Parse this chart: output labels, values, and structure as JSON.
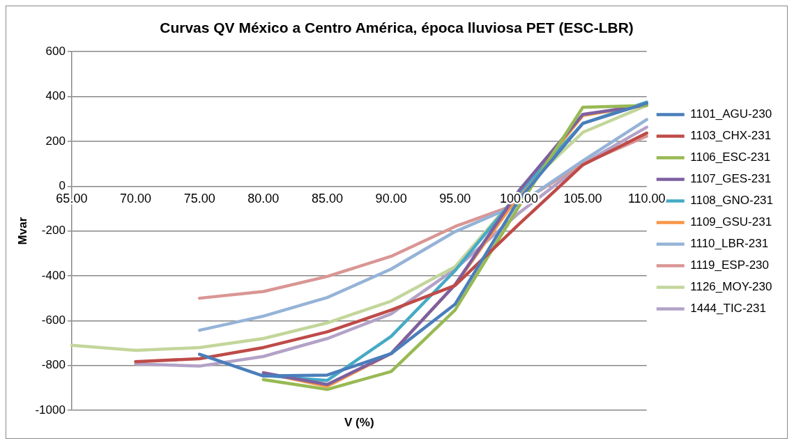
{
  "chart_data": {
    "type": "line",
    "title": "Curvas QV México a Centro América, época lluviosa PET (ESC-LBR)",
    "xlabel": "V (%)",
    "ylabel": "Mvar",
    "categories": [
      "65.00",
      "70.00",
      "75.00",
      "80.00",
      "85.00",
      "90.00",
      "95.00",
      "100.00",
      "105.00",
      "110.00"
    ],
    "ylim": [
      -1000,
      600
    ],
    "yticks": [
      -1000,
      -800,
      -600,
      -400,
      -200,
      0,
      200,
      400,
      600
    ],
    "grid": "y",
    "legend": "right",
    "marker": "none",
    "line_style": "solid",
    "series": [
      {
        "name": "1101_AGU-230",
        "color": "#4a7ebb",
        "values": [
          null,
          null,
          -750,
          -847,
          -843,
          -747,
          -527,
          -60,
          280,
          370
        ]
      },
      {
        "name": "1103_CHX-231",
        "color": "#be4b48",
        "values": [
          null,
          -783,
          -770,
          -720,
          -650,
          -553,
          -443,
          -170,
          95,
          237
        ]
      },
      {
        "name": "1106_ESC-231",
        "color": "#98b954",
        "values": [
          null,
          null,
          null,
          -863,
          -907,
          -827,
          -553,
          -90,
          352,
          360
        ]
      },
      {
        "name": "1107_GES-231",
        "color": "#7d60a0",
        "values": [
          null,
          null,
          null,
          -833,
          -885,
          -747,
          -440,
          -20,
          320,
          362
        ]
      },
      {
        "name": "1108_GNO-231",
        "color": "#46aac5",
        "values": [
          null,
          null,
          null,
          -845,
          -867,
          -670,
          -377,
          -30,
          280,
          375
        ]
      },
      {
        "name": "1109_GSU-231",
        "color": "#f79646",
        "values": [
          null,
          null,
          null,
          -833,
          -893,
          -747,
          -440,
          -40,
          315,
          362
        ]
      },
      {
        "name": "1110_LBR-231",
        "color": "#95b3d7",
        "values": [
          null,
          null,
          -643,
          -580,
          -497,
          -370,
          -203,
          -80,
          113,
          297
        ]
      },
      {
        "name": "1119_ESP-230",
        "color": "#d99694",
        "values": [
          null,
          null,
          -500,
          -470,
          -403,
          -313,
          -180,
          -77,
          100,
          223
        ]
      },
      {
        "name": "1126_MOY-230",
        "color": "#c3d69b",
        "values": [
          -710,
          -733,
          -720,
          -680,
          -610,
          -513,
          -360,
          -30,
          240,
          360
        ]
      },
      {
        "name": "1444_TIC-231",
        "color": "#b3a2c7",
        "values": [
          null,
          -793,
          -803,
          -760,
          -680,
          -570,
          -370,
          -120,
          100,
          263
        ]
      }
    ]
  }
}
